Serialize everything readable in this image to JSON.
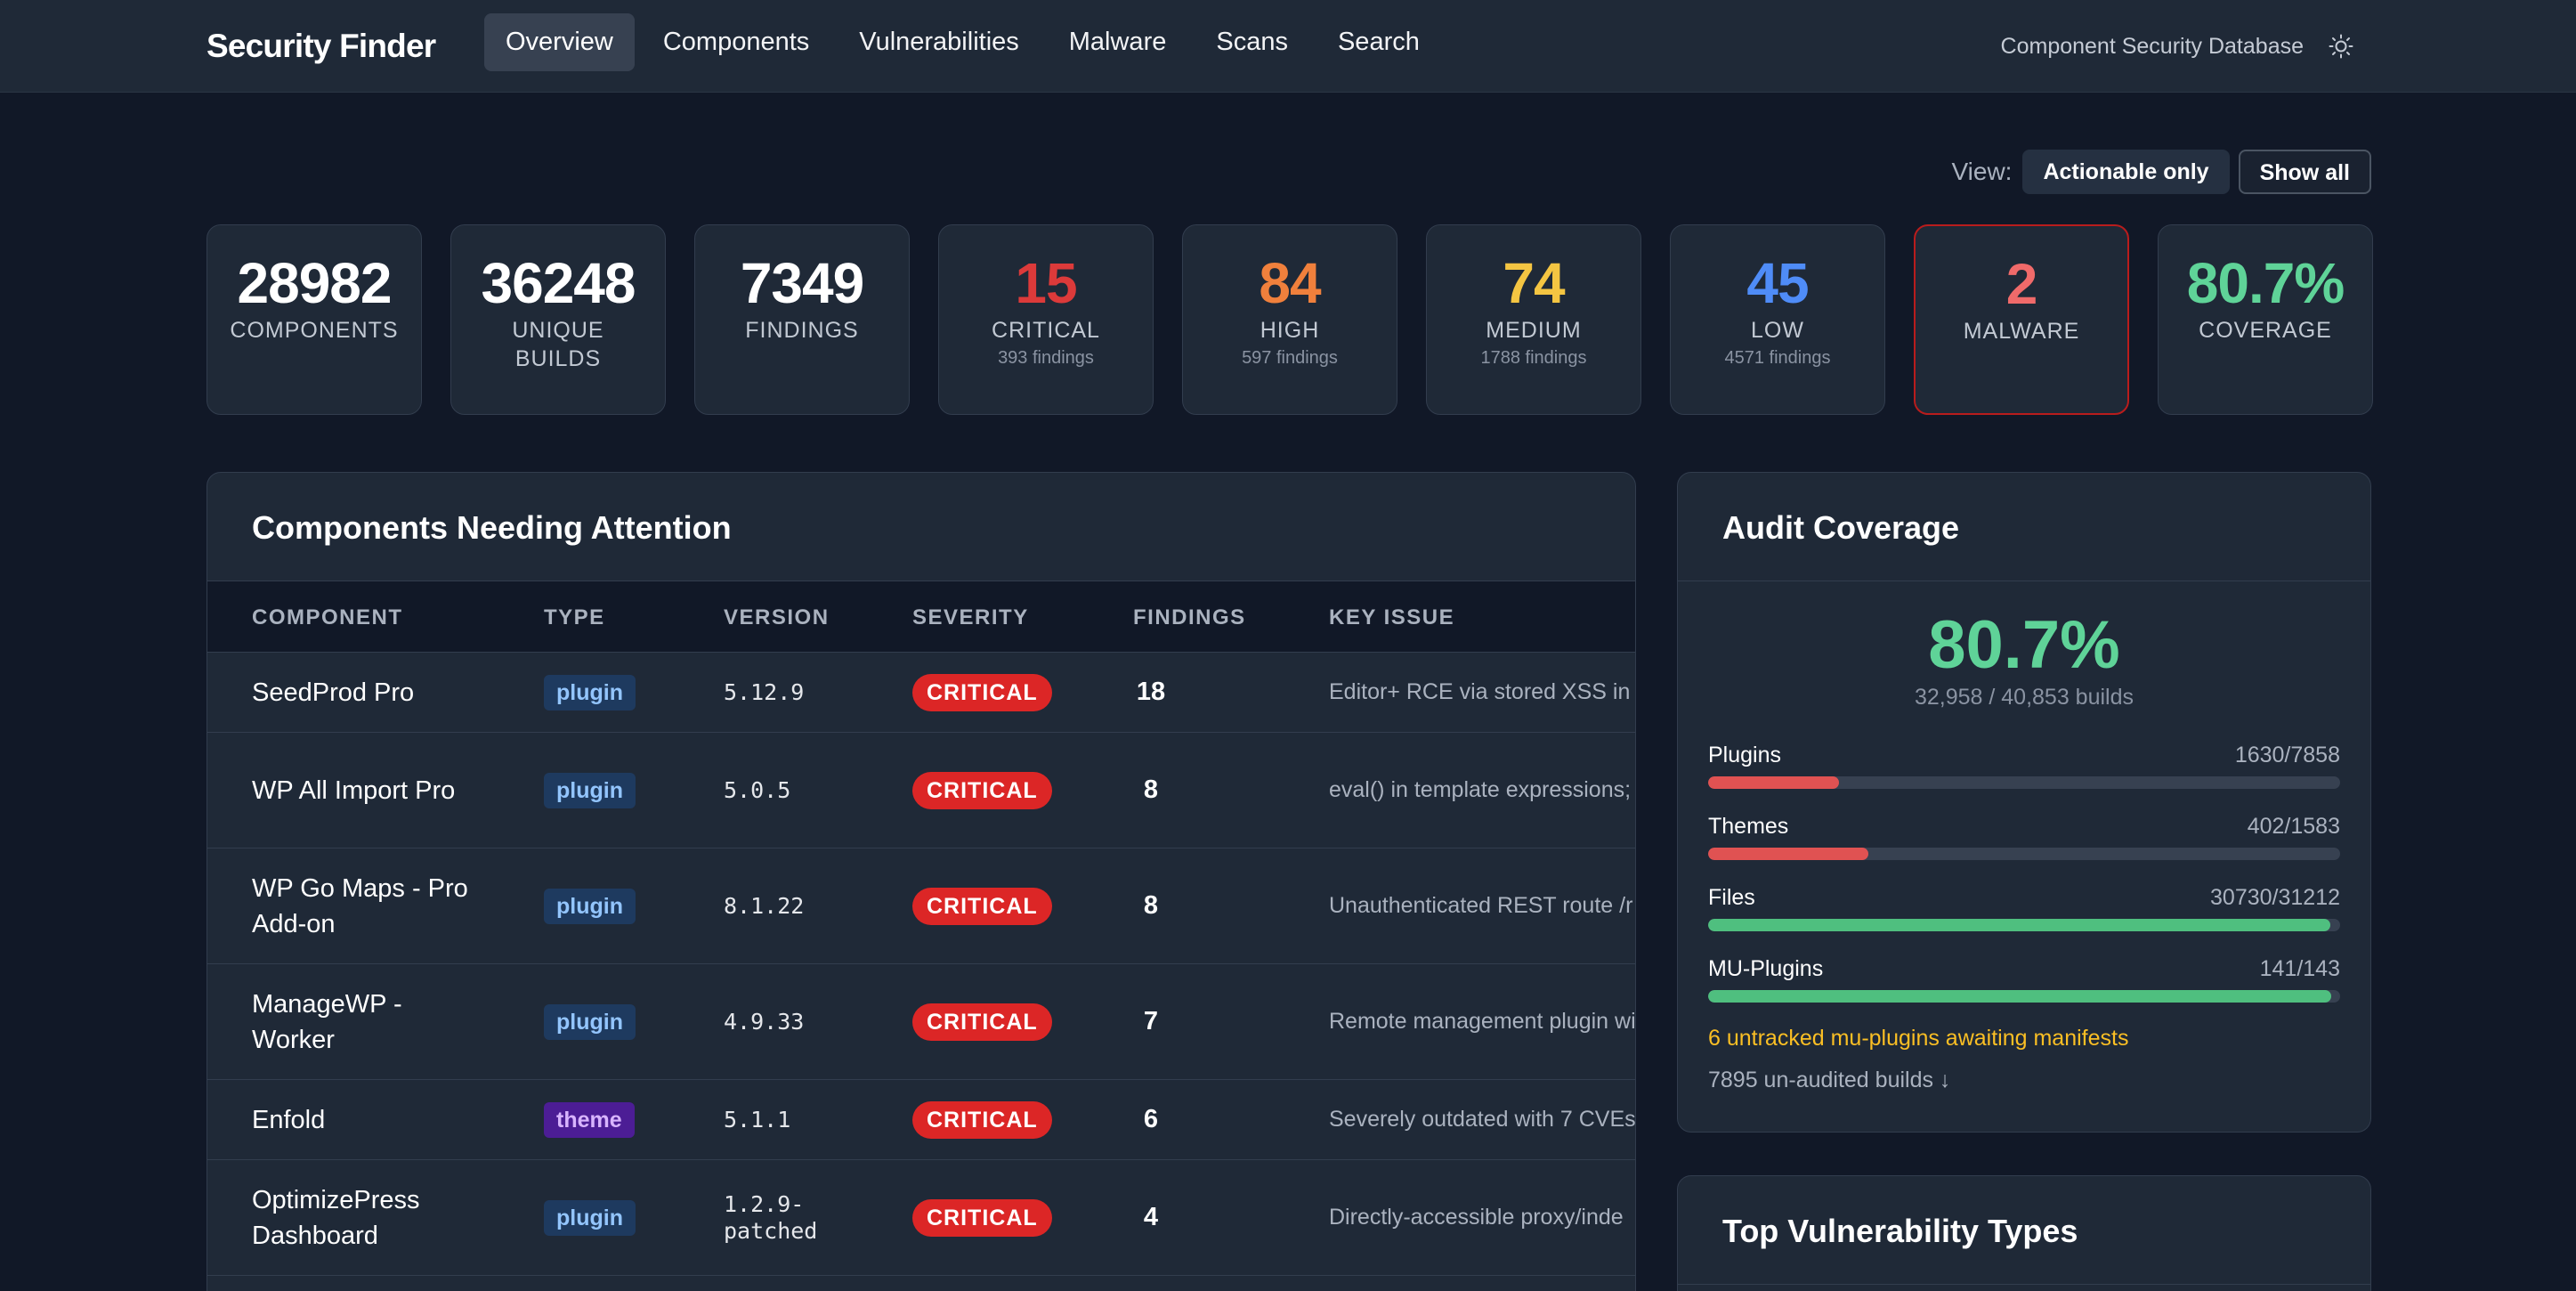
{
  "nav": {
    "brand": "Security Finder",
    "links": [
      "Overview",
      "Components",
      "Vulnerabilities",
      "Malware",
      "Scans",
      "Search"
    ],
    "active": "Overview",
    "subtitle": "Component Security Database",
    "theme_icon": "sun-icon"
  },
  "view": {
    "label": "View:",
    "options": [
      "Actionable only",
      "Show all"
    ],
    "selected": "Actionable only"
  },
  "stats": [
    {
      "value": "28982",
      "label": "COMPONENTS",
      "sub": "",
      "color": "#ffffff"
    },
    {
      "value": "36248",
      "label": "UNIQUE BUILDS",
      "sub": "",
      "color": "#ffffff"
    },
    {
      "value": "7349",
      "label": "FINDINGS",
      "sub": "",
      "color": "#ffffff"
    },
    {
      "value": "15",
      "label": "CRITICAL",
      "sub": "393 findings",
      "color": "#dc3a3a"
    },
    {
      "value": "84",
      "label": "HIGH",
      "sub": "597 findings",
      "color": "#f0803c"
    },
    {
      "value": "74",
      "label": "MEDIUM",
      "sub": "1788 findings",
      "color": "#f4c542"
    },
    {
      "value": "45",
      "label": "LOW",
      "sub": "4571 findings",
      "color": "#4f8cf7"
    },
    {
      "value": "2",
      "label": "MALWARE",
      "sub": "",
      "color": "#f06a6a"
    },
    {
      "value": "80.7%",
      "label": "COVERAGE",
      "sub": "",
      "color": "#5fd398"
    }
  ],
  "attention": {
    "title": "Components Needing Attention",
    "columns": [
      "COMPONENT",
      "TYPE",
      "VERSION",
      "SEVERITY",
      "FINDINGS",
      "KEY ISSUE"
    ],
    "rows": [
      {
        "name": "SeedProd Pro",
        "type": "plugin",
        "version": "5.12.9",
        "severity": "CRITICAL",
        "findings": "18",
        "issue": "Editor+ RCE via stored XSS in l"
      },
      {
        "name": "WP All Import Pro",
        "type": "plugin",
        "version": "5.0.5",
        "severity": "CRITICAL",
        "findings": "8",
        "issue": "eval() in template expressions;"
      },
      {
        "name": "WP Go Maps - Pro Add-on",
        "type": "plugin",
        "version": "8.1.22",
        "severity": "CRITICAL",
        "findings": "8",
        "issue": "Unauthenticated REST route /r"
      },
      {
        "name": "ManageWP - Worker",
        "type": "plugin",
        "version": "4.9.33",
        "severity": "CRITICAL",
        "findings": "7",
        "issue": "Remote management plugin wi"
      },
      {
        "name": "Enfold",
        "type": "theme",
        "version": "5.1.1",
        "severity": "CRITICAL",
        "findings": "6",
        "issue": "Severely outdated with 7 CVEs"
      },
      {
        "name": "OptimizePress Dashboard",
        "type": "plugin",
        "version": "1.2.9-patched",
        "severity": "CRITICAL",
        "findings": "4",
        "issue": "Directly-accessible proxy/inde"
      }
    ]
  },
  "coverage": {
    "title": "Audit Coverage",
    "percent": "80.7%",
    "summary": "32,958 / 40,853 builds",
    "items": [
      {
        "label": "Plugins",
        "count": "1630/7858",
        "fraction": 0.2074,
        "color": "#e05252"
      },
      {
        "label": "Themes",
        "count": "402/1583",
        "fraction": 0.254,
        "color": "#e05252"
      },
      {
        "label": "Files",
        "count": "30730/31212",
        "fraction": 0.9846,
        "color": "#4fbf7f"
      },
      {
        "label": "MU-Plugins",
        "count": "141/143",
        "fraction": 0.986,
        "color": "#4fbf7f"
      }
    ],
    "warning": "6 untracked mu-plugins awaiting manifests",
    "unaudited": "7895 un-audited builds ↓"
  },
  "vuln_types": {
    "title": "Top Vulnerability Types"
  }
}
